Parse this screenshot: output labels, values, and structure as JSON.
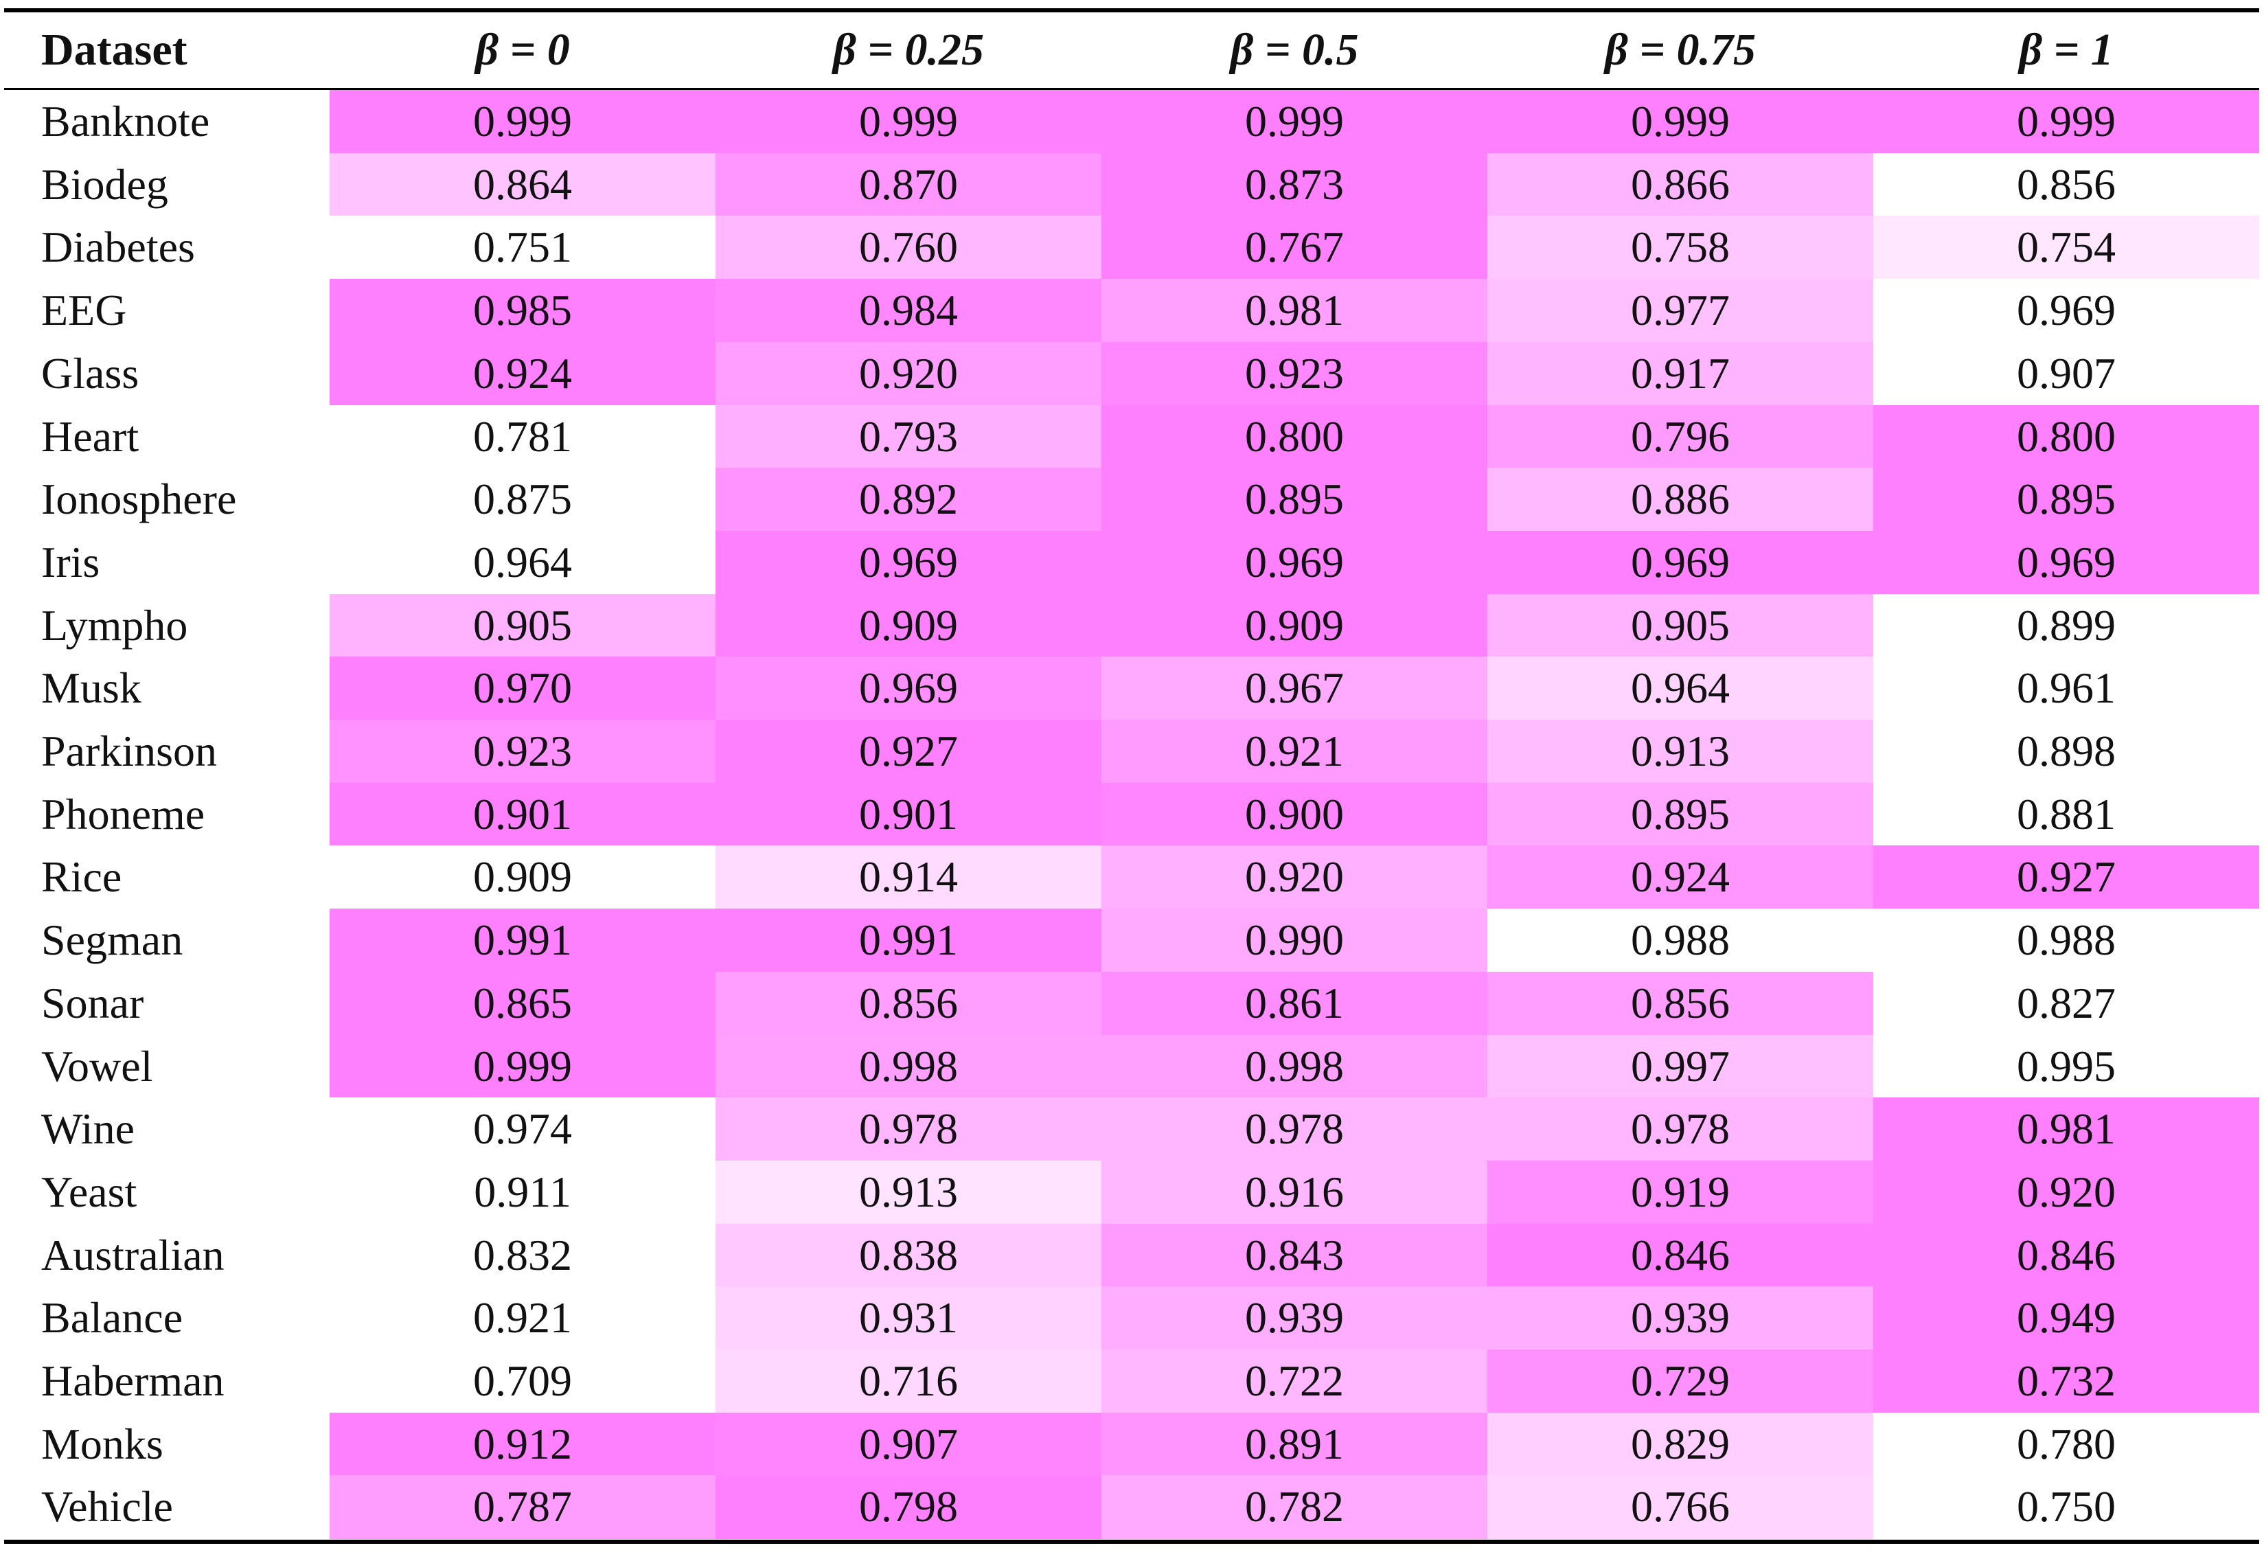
{
  "table": {
    "header": [
      "Dataset",
      "β = 0",
      "β = 0.25",
      "β = 0.5",
      "β = 0.75",
      "β = 1"
    ],
    "rows": [
      {
        "dataset": "Banknote",
        "values": [
          "0.999",
          "0.999",
          "0.999",
          "0.999",
          "0.999"
        ]
      },
      {
        "dataset": "Biodeg",
        "values": [
          "0.864",
          "0.870",
          "0.873",
          "0.866",
          "0.856"
        ]
      },
      {
        "dataset": "Diabetes",
        "values": [
          "0.751",
          "0.760",
          "0.767",
          "0.758",
          "0.754"
        ]
      },
      {
        "dataset": "EEG",
        "values": [
          "0.985",
          "0.984",
          "0.981",
          "0.977",
          "0.969"
        ]
      },
      {
        "dataset": "Glass",
        "values": [
          "0.924",
          "0.920",
          "0.923",
          "0.917",
          "0.907"
        ]
      },
      {
        "dataset": "Heart",
        "values": [
          "0.781",
          "0.793",
          "0.800",
          "0.796",
          "0.800"
        ]
      },
      {
        "dataset": "Ionosphere",
        "values": [
          "0.875",
          "0.892",
          "0.895",
          "0.886",
          "0.895"
        ]
      },
      {
        "dataset": "Iris",
        "values": [
          "0.964",
          "0.969",
          "0.969",
          "0.969",
          "0.969"
        ]
      },
      {
        "dataset": "Lympho",
        "values": [
          "0.905",
          "0.909",
          "0.909",
          "0.905",
          "0.899"
        ]
      },
      {
        "dataset": "Musk",
        "values": [
          "0.970",
          "0.969",
          "0.967",
          "0.964",
          "0.961"
        ]
      },
      {
        "dataset": "Parkinson",
        "values": [
          "0.923",
          "0.927",
          "0.921",
          "0.913",
          "0.898"
        ]
      },
      {
        "dataset": "Phoneme",
        "values": [
          "0.901",
          "0.901",
          "0.900",
          "0.895",
          "0.881"
        ]
      },
      {
        "dataset": "Rice",
        "values": [
          "0.909",
          "0.914",
          "0.920",
          "0.924",
          "0.927"
        ]
      },
      {
        "dataset": "Segman",
        "values": [
          "0.991",
          "0.991",
          "0.990",
          "0.988",
          "0.988"
        ]
      },
      {
        "dataset": "Sonar",
        "values": [
          "0.865",
          "0.856",
          "0.861",
          "0.856",
          "0.827"
        ]
      },
      {
        "dataset": "Vowel",
        "values": [
          "0.999",
          "0.998",
          "0.998",
          "0.997",
          "0.995"
        ]
      },
      {
        "dataset": "Wine",
        "values": [
          "0.974",
          "0.978",
          "0.978",
          "0.978",
          "0.981"
        ]
      },
      {
        "dataset": "Yeast",
        "values": [
          "0.911",
          "0.913",
          "0.916",
          "0.919",
          "0.920"
        ]
      },
      {
        "dataset": "Australian",
        "values": [
          "0.832",
          "0.838",
          "0.843",
          "0.846",
          "0.846"
        ]
      },
      {
        "dataset": "Balance",
        "values": [
          "0.921",
          "0.931",
          "0.939",
          "0.939",
          "0.949"
        ]
      },
      {
        "dataset": "Haberman",
        "values": [
          "0.709",
          "0.716",
          "0.722",
          "0.729",
          "0.732"
        ]
      },
      {
        "dataset": "Monks",
        "values": [
          "0.912",
          "0.907",
          "0.891",
          "0.829",
          "0.780"
        ]
      },
      {
        "dataset": "Vehicle",
        "values": [
          "0.787",
          "0.798",
          "0.782",
          "0.766",
          "0.750"
        ]
      }
    ]
  }
}
